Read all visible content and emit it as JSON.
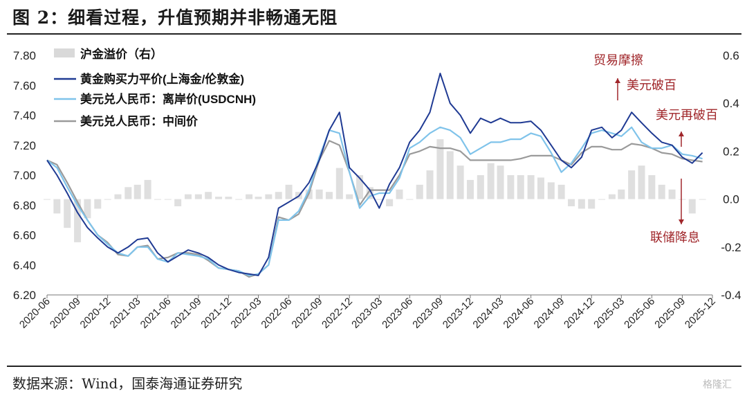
{
  "title": "图 2：细看过程，升值预期并非畅通无阻",
  "source": "数据来源：Wind，国泰海通证券研究",
  "watermark": "格隆汇",
  "chart_data": {
    "type": "line",
    "ylim_left": [
      6.2,
      7.8
    ],
    "yticks_left": [
      "6.20",
      "6.40",
      "6.60",
      "6.80",
      "7.00",
      "7.20",
      "7.40",
      "7.60",
      "7.80"
    ],
    "ylim_right": [
      -0.4,
      0.6
    ],
    "yticks_right": [
      "-0.4",
      "-0.2",
      "0.0",
      "0.2",
      "0.4",
      "0.6"
    ],
    "xlim": [
      "2020-06",
      "2025-12"
    ],
    "xticks": [
      "2020-06",
      "2020-09",
      "2020-12",
      "2021-03",
      "2021-06",
      "2021-09",
      "2021-12",
      "2022-03",
      "2022-06",
      "2022-09",
      "2022-12",
      "2023-03",
      "2023-06",
      "2023-09",
      "2023-12",
      "2024-03",
      "2024-06",
      "2024-09",
      "2024-12",
      "2025-03",
      "2025-06",
      "2025-09",
      "2025-12"
    ],
    "legend": [
      {
        "label": "沪金溢价（右）",
        "color": "#d9d9d9",
        "type": "bar"
      },
      {
        "label": "黄金购买力平价(上海金/伦敦金)",
        "color": "#1f3a93",
        "type": "line"
      },
      {
        "label": "美元兑人民币：离岸价(USDCNH)",
        "color": "#7fc3ea",
        "type": "line"
      },
      {
        "label": "美元兑人民币：中间价",
        "color": "#9a9a9a",
        "type": "line"
      }
    ],
    "series": [
      {
        "name": "黄金购买力平价(上海金/伦敦金)",
        "axis": "left",
        "x": [
          "2020-06-01",
          "2020-07-01",
          "2020-08-01",
          "2020-09-01",
          "2020-10-01",
          "2020-11-01",
          "2020-12-01",
          "2021-01-01",
          "2021-02-01",
          "2021-03-01",
          "2021-04-01",
          "2021-05-01",
          "2021-06-01",
          "2021-07-01",
          "2021-08-01",
          "2021-09-01",
          "2021-10-01",
          "2021-11-01",
          "2021-12-01",
          "2022-01-01",
          "2022-02-01",
          "2022-03-01",
          "2022-04-01",
          "2022-05-01",
          "2022-06-01",
          "2022-07-01",
          "2022-08-01",
          "2022-09-01",
          "2022-10-01",
          "2022-11-01",
          "2022-12-01",
          "2023-01-01",
          "2023-02-01",
          "2023-03-01",
          "2023-04-01",
          "2023-05-01",
          "2023-06-01",
          "2023-07-01",
          "2023-08-01",
          "2023-09-01",
          "2023-10-01",
          "2023-11-01",
          "2023-12-01",
          "2024-01-01",
          "2024-02-01",
          "2024-03-01",
          "2024-04-01",
          "2024-05-01",
          "2024-06-01",
          "2024-07-01",
          "2024-08-01",
          "2024-09-01",
          "2024-10-01",
          "2024-11-01",
          "2024-12-01",
          "2025-01-01",
          "2025-02-01",
          "2025-03-01",
          "2025-04-01",
          "2025-05-01",
          "2025-06-01",
          "2025-07-01",
          "2025-08-01",
          "2025-09-01",
          "2025-10-01",
          "2025-11-01"
        ],
        "values": [
          7.1,
          7.0,
          6.88,
          6.75,
          6.65,
          6.58,
          6.52,
          6.48,
          6.52,
          6.57,
          6.58,
          6.48,
          6.42,
          6.46,
          6.5,
          6.48,
          6.45,
          6.4,
          6.37,
          6.35,
          6.34,
          6.33,
          6.45,
          6.78,
          6.82,
          6.86,
          6.95,
          7.1,
          7.3,
          7.42,
          7.05,
          6.98,
          6.9,
          6.78,
          6.94,
          7.05,
          7.22,
          7.3,
          7.42,
          7.68,
          7.48,
          7.4,
          7.28,
          7.38,
          7.35,
          7.38,
          7.35,
          7.35,
          7.36,
          7.3,
          7.2,
          7.1,
          7.05,
          7.12,
          7.3,
          7.32,
          7.25,
          7.3,
          7.42,
          7.35,
          7.28,
          7.22,
          7.2,
          7.12,
          7.08,
          7.15
        ]
      },
      {
        "name": "美元兑人民币：离岸价(USDCNH)",
        "axis": "left",
        "x": [
          "2020-06-01",
          "2020-07-01",
          "2020-08-01",
          "2020-09-01",
          "2020-10-01",
          "2020-11-01",
          "2020-12-01",
          "2021-01-01",
          "2021-02-01",
          "2021-03-01",
          "2021-04-01",
          "2021-05-01",
          "2021-06-01",
          "2021-07-01",
          "2021-08-01",
          "2021-09-01",
          "2021-10-01",
          "2021-11-01",
          "2021-12-01",
          "2022-01-01",
          "2022-02-01",
          "2022-03-01",
          "2022-04-01",
          "2022-05-01",
          "2022-06-01",
          "2022-07-01",
          "2022-08-01",
          "2022-09-01",
          "2022-10-01",
          "2022-11-01",
          "2022-12-01",
          "2023-01-01",
          "2023-02-01",
          "2023-03-01",
          "2023-04-01",
          "2023-05-01",
          "2023-06-01",
          "2023-07-01",
          "2023-08-01",
          "2023-09-01",
          "2023-10-01",
          "2023-11-01",
          "2023-12-01",
          "2024-01-01",
          "2024-02-01",
          "2024-03-01",
          "2024-04-01",
          "2024-05-01",
          "2024-06-01",
          "2024-07-01",
          "2024-08-01",
          "2024-09-01",
          "2024-10-01",
          "2024-11-01",
          "2024-12-01",
          "2025-01-01",
          "2025-02-01",
          "2025-03-01",
          "2025-04-01",
          "2025-05-01",
          "2025-06-01",
          "2025-07-01",
          "2025-08-01",
          "2025-09-01",
          "2025-10-01",
          "2025-11-01"
        ],
        "values": [
          7.1,
          7.05,
          6.92,
          6.8,
          6.7,
          6.6,
          6.54,
          6.48,
          6.46,
          6.52,
          6.52,
          6.44,
          6.42,
          6.48,
          6.47,
          6.46,
          6.44,
          6.38,
          6.37,
          6.36,
          6.33,
          6.34,
          6.4,
          6.7,
          6.7,
          6.76,
          6.9,
          7.12,
          7.3,
          7.28,
          7.02,
          6.78,
          6.86,
          6.88,
          6.88,
          6.98,
          7.18,
          7.22,
          7.28,
          7.32,
          7.3,
          7.25,
          7.14,
          7.18,
          7.22,
          7.22,
          7.24,
          7.24,
          7.28,
          7.26,
          7.15,
          7.02,
          7.08,
          7.18,
          7.28,
          7.3,
          7.28,
          7.26,
          7.32,
          7.22,
          7.18,
          7.18,
          7.2,
          7.14,
          7.13,
          7.11
        ]
      },
      {
        "name": "美元兑人民币：中间价",
        "axis": "left",
        "x": [
          "2020-06-01",
          "2020-07-01",
          "2020-08-01",
          "2020-09-01",
          "2020-10-01",
          "2020-11-01",
          "2020-12-01",
          "2021-01-01",
          "2021-02-01",
          "2021-03-01",
          "2021-04-01",
          "2021-05-01",
          "2021-06-01",
          "2021-07-01",
          "2021-08-01",
          "2021-09-01",
          "2021-10-01",
          "2021-11-01",
          "2021-12-01",
          "2022-01-01",
          "2022-02-01",
          "2022-03-01",
          "2022-04-01",
          "2022-05-01",
          "2022-06-01",
          "2022-07-01",
          "2022-08-01",
          "2022-09-01",
          "2022-10-01",
          "2022-11-01",
          "2022-12-01",
          "2023-01-01",
          "2023-02-01",
          "2023-03-01",
          "2023-04-01",
          "2023-05-01",
          "2023-06-01",
          "2023-07-01",
          "2023-08-01",
          "2023-09-01",
          "2023-10-01",
          "2023-11-01",
          "2023-12-01",
          "2024-01-01",
          "2024-02-01",
          "2024-03-01",
          "2024-04-01",
          "2024-05-01",
          "2024-06-01",
          "2024-07-01",
          "2024-08-01",
          "2024-09-01",
          "2024-10-01",
          "2024-11-01",
          "2024-12-01",
          "2025-01-01",
          "2025-02-01",
          "2025-03-01",
          "2025-04-01",
          "2025-05-01",
          "2025-06-01",
          "2025-07-01",
          "2025-08-01",
          "2025-09-01",
          "2025-10-01",
          "2025-11-01"
        ],
        "values": [
          7.1,
          7.07,
          6.95,
          6.82,
          6.7,
          6.6,
          6.55,
          6.47,
          6.46,
          6.52,
          6.53,
          6.44,
          6.45,
          6.48,
          6.48,
          6.47,
          6.43,
          6.38,
          6.37,
          6.36,
          6.32,
          6.34,
          6.4,
          6.72,
          6.7,
          6.74,
          6.88,
          7.1,
          7.23,
          7.2,
          7.02,
          6.8,
          6.9,
          6.9,
          6.9,
          7.0,
          7.14,
          7.16,
          7.19,
          7.18,
          7.18,
          7.16,
          7.1,
          7.1,
          7.1,
          7.1,
          7.1,
          7.11,
          7.13,
          7.13,
          7.13,
          7.1,
          7.07,
          7.15,
          7.19,
          7.19,
          7.17,
          7.17,
          7.21,
          7.2,
          7.18,
          7.15,
          7.14,
          7.11,
          7.1,
          7.09
        ]
      },
      {
        "name": "沪金溢价（右）",
        "axis": "right",
        "type": "bar",
        "x": [
          "2020-06-01",
          "2020-07-01",
          "2020-08-01",
          "2020-09-01",
          "2020-10-01",
          "2020-11-01",
          "2020-12-01",
          "2021-01-01",
          "2021-02-01",
          "2021-03-01",
          "2021-04-01",
          "2021-05-01",
          "2021-06-01",
          "2021-07-01",
          "2021-08-01",
          "2021-09-01",
          "2021-10-01",
          "2021-11-01",
          "2021-12-01",
          "2022-01-01",
          "2022-02-01",
          "2022-03-01",
          "2022-04-01",
          "2022-05-01",
          "2022-06-01",
          "2022-07-01",
          "2022-08-01",
          "2022-09-01",
          "2022-10-01",
          "2022-11-01",
          "2022-12-01",
          "2023-01-01",
          "2023-02-01",
          "2023-03-01",
          "2023-04-01",
          "2023-05-01",
          "2023-06-01",
          "2023-07-01",
          "2023-08-01",
          "2023-09-01",
          "2023-10-01",
          "2023-11-01",
          "2023-12-01",
          "2024-01-01",
          "2024-02-01",
          "2024-03-01",
          "2024-04-01",
          "2024-05-01",
          "2024-06-01",
          "2024-07-01",
          "2024-08-01",
          "2024-09-01",
          "2024-10-01",
          "2024-11-01",
          "2024-12-01",
          "2025-01-01",
          "2025-02-01",
          "2025-03-01",
          "2025-04-01",
          "2025-05-01",
          "2025-06-01",
          "2025-07-01",
          "2025-08-01",
          "2025-09-01",
          "2025-10-01",
          "2025-11-01"
        ],
        "values": [
          0.0,
          -0.06,
          -0.12,
          -0.18,
          -0.08,
          -0.04,
          0.0,
          0.02,
          0.05,
          0.06,
          0.08,
          0.0,
          0.0,
          -0.03,
          0.02,
          0.02,
          0.03,
          0.01,
          0.01,
          0.0,
          0.02,
          0.01,
          0.02,
          0.03,
          0.06,
          0.03,
          0.04,
          0.04,
          0.03,
          0.13,
          0.02,
          0.1,
          0.05,
          0.0,
          -0.03,
          0.04,
          0.0,
          0.06,
          0.12,
          0.25,
          0.2,
          0.14,
          0.08,
          0.1,
          0.15,
          0.14,
          0.1,
          0.1,
          0.1,
          0.09,
          0.07,
          0.06,
          -0.03,
          -0.04,
          -0.04,
          0.0,
          0.02,
          0.04,
          0.12,
          0.14,
          0.1,
          0.06,
          0.04,
          0.0,
          -0.06,
          0.0
        ]
      }
    ],
    "annotations": [
      {
        "text": "贸易摩擦",
        "x": "2025-04-10",
        "y": 7.52
      },
      {
        "text": "美元破百",
        "x": "2025-04-10",
        "y": 7.45
      },
      {
        "text": "美元再破百",
        "x": "2025-11-05",
        "y": 7.2
      },
      {
        "text": "联储降息",
        "x": "2025-10-15",
        "y": 6.98
      }
    ]
  }
}
